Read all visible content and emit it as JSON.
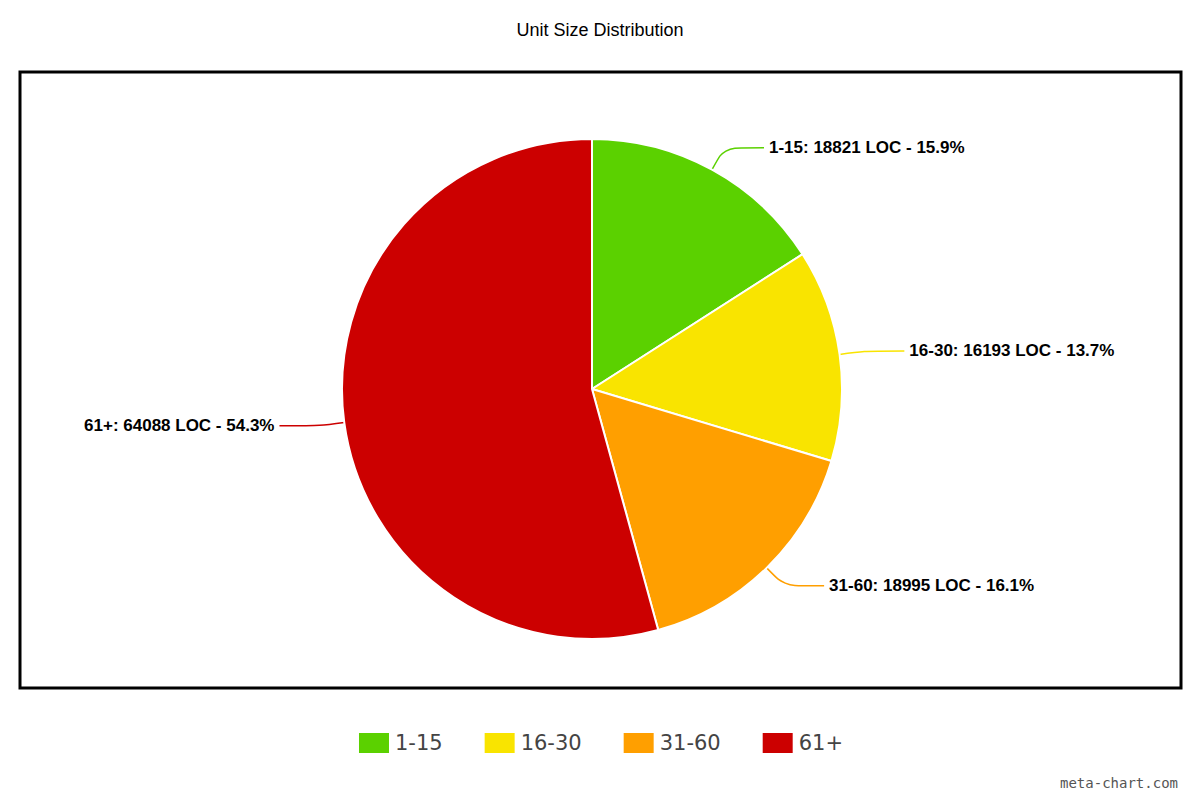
{
  "chart_data": {
    "type": "pie",
    "title": "Unit Size Distribution",
    "categories": [
      "1-15",
      "16-30",
      "31-60",
      "61+"
    ],
    "values": [
      18821,
      16193,
      18995,
      64088
    ],
    "value_labels": [
      "1-15: 18821 LOC - 15.9%",
      "16-30: 16193 LOC - 13.7%",
      "31-60: 18995 LOC - 16.1%",
      "61+: 64088 LOC - 54.3%"
    ],
    "colors": [
      "#5bd100",
      "#f9e400",
      "#ff9f00",
      "#cc0000"
    ],
    "data_labels": true,
    "legend": "bottom",
    "annotations": [
      "meta-chart.com"
    ]
  }
}
